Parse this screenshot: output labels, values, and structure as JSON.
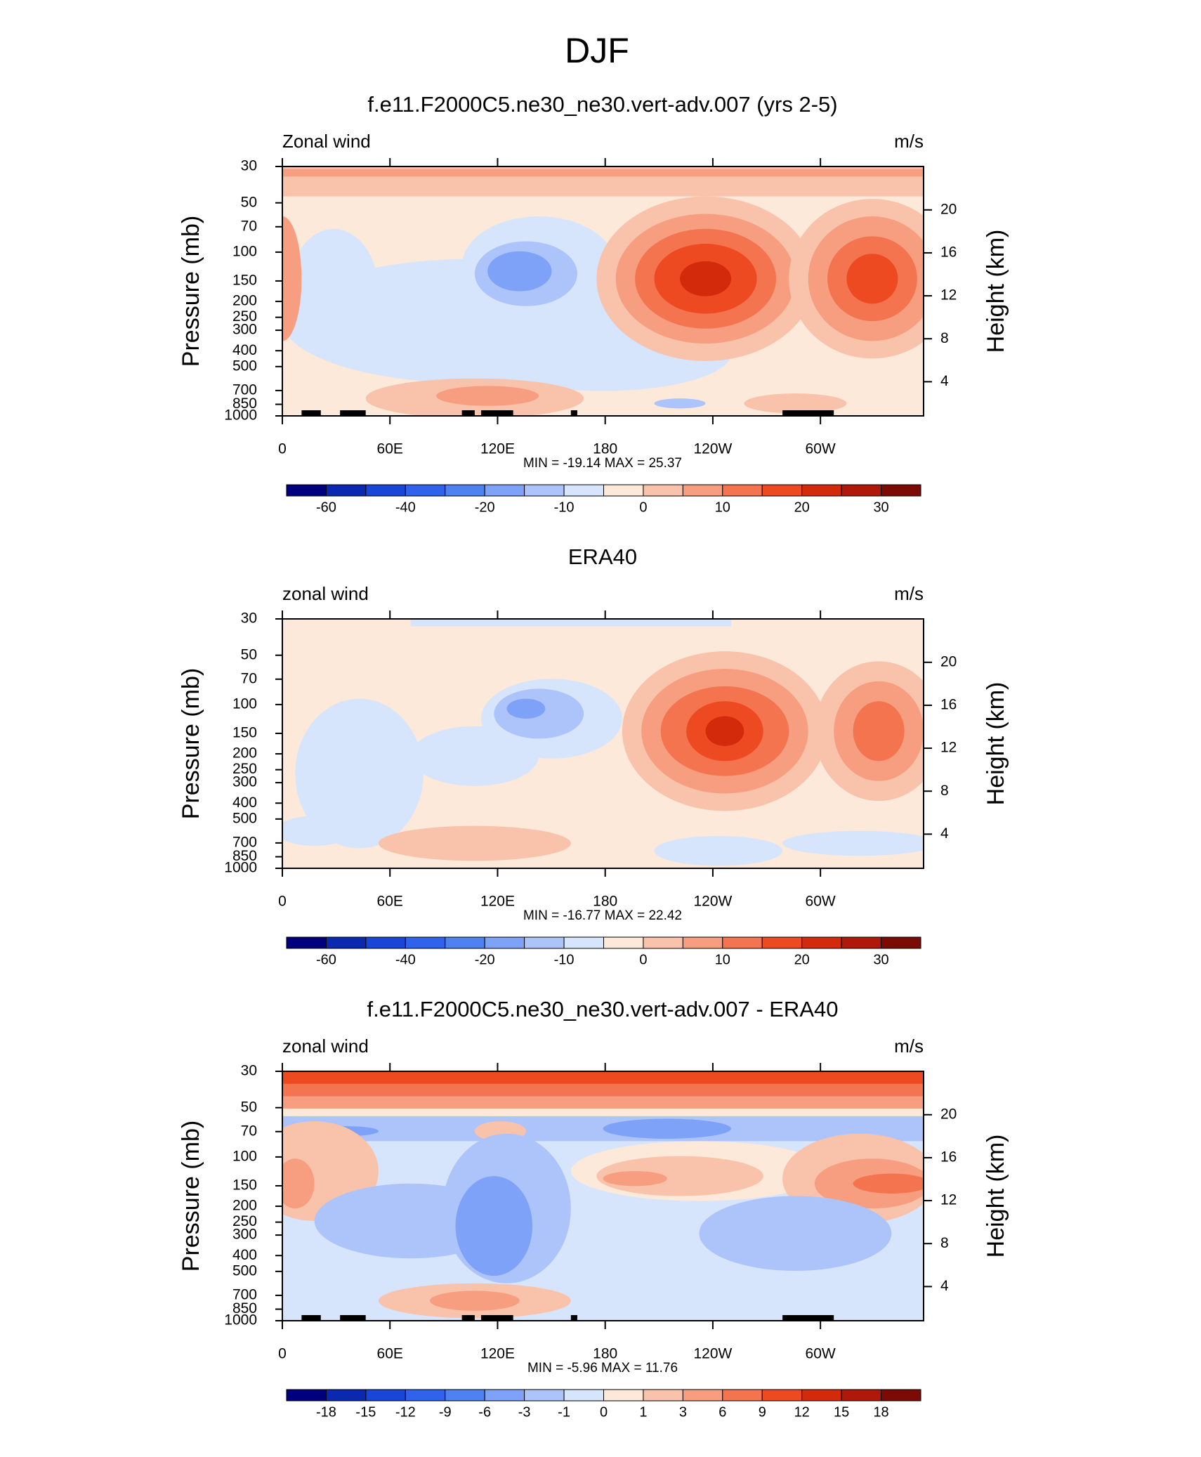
{
  "title": "DJF",
  "chart_data": [
    {
      "type": "contour",
      "subtitle": "f.e11.F2000C5.ne30_ne30.vert-adv.007 (yrs 2-5)",
      "left_label": "Zonal wind",
      "right_label": "m/s",
      "ylabel": "Pressure (mb)",
      "y2label": "Height (km)",
      "stats": "MIN = -19.14  MAX =  25.37",
      "xlim": [
        0,
        357.5
      ],
      "xticks": [
        0,
        {
          "value": 60,
          "label": "60E"
        },
        {
          "value": 120,
          "label": "120E"
        },
        180,
        {
          "value": 240,
          "label": "120W"
        },
        {
          "value": 300,
          "label": "60W"
        }
      ],
      "ylim": [
        1000,
        30
      ],
      "ylog": true,
      "yticks": [
        30,
        50,
        70,
        100,
        150,
        200,
        250,
        300,
        400,
        500,
        700,
        850,
        1000
      ],
      "y2lim": [
        0.82,
        24.04
      ],
      "y2ticks": [
        4,
        8,
        12,
        16,
        20
      ],
      "colorbar": {
        "colors": [
          "#00007f",
          "#0a28b0",
          "#1a46d8",
          "#2f63eb",
          "#4d82f0",
          "#7ea2f7",
          "#adc4fa",
          "#d6e5fb",
          "#fde9d9",
          "#f9c2ab",
          "#f79e80",
          "#f3744f",
          "#ee4a22",
          "#d42a0c",
          "#b0180a",
          "#7c0a05"
        ],
        "levels": [
          -60,
          -50,
          -40,
          -30,
          -20,
          -15,
          -10,
          -5,
          0,
          5,
          10,
          15,
          20,
          25,
          30
        ],
        "ticks": [
          -60,
          -40,
          -20,
          -10,
          0,
          10,
          20,
          30
        ]
      }
    },
    {
      "type": "contour",
      "subtitle": "ERA40",
      "left_label": "zonal wind",
      "right_label": "m/s",
      "ylabel": "Pressure (mb)",
      "y2label": "Height (km)",
      "stats": "MIN = -16.77  MAX =  22.42",
      "xlim": [
        0,
        357.5
      ],
      "xticks": [
        0,
        {
          "value": 60,
          "label": "60E"
        },
        {
          "value": 120,
          "label": "120E"
        },
        180,
        {
          "value": 240,
          "label": "120W"
        },
        {
          "value": 300,
          "label": "60W"
        }
      ],
      "ylim": [
        1000,
        30
      ],
      "ylog": true,
      "yticks": [
        30,
        50,
        70,
        100,
        150,
        200,
        250,
        300,
        400,
        500,
        700,
        850,
        1000
      ],
      "y2lim": [
        0.82,
        24.04
      ],
      "y2ticks": [
        4,
        8,
        12,
        16,
        20
      ],
      "colorbar": {
        "colors": [
          "#00007f",
          "#0a28b0",
          "#1a46d8",
          "#2f63eb",
          "#4d82f0",
          "#7ea2f7",
          "#adc4fa",
          "#d6e5fb",
          "#fde9d9",
          "#f9c2ab",
          "#f79e80",
          "#f3744f",
          "#ee4a22",
          "#d42a0c",
          "#b0180a",
          "#7c0a05"
        ],
        "levels": [
          -60,
          -50,
          -40,
          -30,
          -20,
          -15,
          -10,
          -5,
          0,
          5,
          10,
          15,
          20,
          25,
          30
        ],
        "ticks": [
          -60,
          -40,
          -20,
          -10,
          0,
          10,
          20,
          30
        ]
      }
    },
    {
      "type": "contour",
      "subtitle": "f.e11.F2000C5.ne30_ne30.vert-adv.007 - ERA40",
      "left_label": "zonal wind",
      "right_label": "m/s",
      "ylabel": "Pressure (mb)",
      "y2label": "Height (km)",
      "stats": "MIN =  -5.96  MAX =  11.76",
      "xlim": [
        0,
        357.5
      ],
      "xticks": [
        0,
        {
          "value": 60,
          "label": "60E"
        },
        {
          "value": 120,
          "label": "120E"
        },
        180,
        {
          "value": 240,
          "label": "120W"
        },
        {
          "value": 300,
          "label": "60W"
        }
      ],
      "ylim": [
        1000,
        30
      ],
      "ylog": true,
      "yticks": [
        30,
        50,
        70,
        100,
        150,
        200,
        250,
        300,
        400,
        500,
        700,
        850,
        1000
      ],
      "y2lim": [
        0.82,
        24.04
      ],
      "y2ticks": [
        4,
        8,
        12,
        16,
        20
      ],
      "colorbar": {
        "colors": [
          "#00007f",
          "#0a28b0",
          "#1a46d8",
          "#2f63eb",
          "#4d82f0",
          "#7ea2f7",
          "#adc4fa",
          "#d6e5fb",
          "#fde9d9",
          "#f9c2ab",
          "#f79e80",
          "#f3744f",
          "#ee4a22",
          "#d42a0c",
          "#b0180a",
          "#7c0a05"
        ],
        "levels": [
          -18,
          -15,
          -12,
          -9,
          -6,
          -3,
          -1,
          0,
          1,
          3,
          6,
          9,
          12,
          15,
          18
        ],
        "ticks": [
          -18,
          -15,
          -12,
          -9,
          -6,
          -3,
          -1,
          0,
          1,
          3,
          6,
          9,
          12,
          15,
          18
        ]
      }
    }
  ]
}
